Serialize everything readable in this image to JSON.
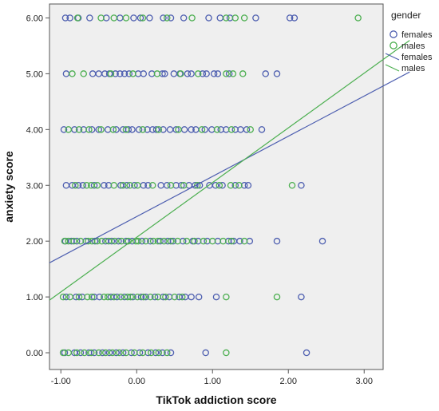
{
  "chart_data": {
    "type": "scatter",
    "xlabel": "TikTok addiction score",
    "ylabel": "anxiety score",
    "xlim": [
      -1.15,
      3.25
    ],
    "ylim": [
      -0.3,
      6.25
    ],
    "xticks": [
      -1.0,
      0.0,
      1.0,
      2.0,
      3.0
    ],
    "xtick_labels": [
      "-1.00",
      "0.00",
      "1.00",
      "2.00",
      "3.00"
    ],
    "yticks": [
      0,
      1,
      2,
      3,
      4,
      5,
      6
    ],
    "ytick_labels": [
      "0.00",
      "1.00",
      "2.00",
      "3.00",
      "4.00",
      "5.00",
      "6.00"
    ],
    "grid": false,
    "background": "#efefef",
    "legend_title": "gender",
    "legend_position": "right",
    "series": [
      {
        "name": "females",
        "color": "#4e5fb0",
        "points": [
          [
            -0.94,
            6
          ],
          [
            -0.88,
            6
          ],
          [
            -0.77,
            6
          ],
          [
            -0.62,
            6
          ],
          [
            -0.4,
            6
          ],
          [
            -0.22,
            6
          ],
          [
            -0.04,
            6
          ],
          [
            0.05,
            6
          ],
          [
            0.17,
            6
          ],
          [
            0.35,
            6
          ],
          [
            0.45,
            6
          ],
          [
            0.62,
            6
          ],
          [
            0.95,
            6
          ],
          [
            1.1,
            6
          ],
          [
            1.23,
            6
          ],
          [
            1.57,
            6
          ],
          [
            2.02,
            6
          ],
          [
            2.08,
            6
          ],
          [
            -0.93,
            5
          ],
          [
            -0.58,
            5
          ],
          [
            -0.5,
            5
          ],
          [
            -0.42,
            5
          ],
          [
            -0.36,
            5
          ],
          [
            -0.28,
            5
          ],
          [
            -0.22,
            5
          ],
          [
            -0.16,
            5
          ],
          [
            -0.1,
            5
          ],
          [
            0.02,
            5
          ],
          [
            0.09,
            5
          ],
          [
            0.2,
            5
          ],
          [
            0.34,
            5
          ],
          [
            0.37,
            5
          ],
          [
            0.49,
            5
          ],
          [
            0.57,
            5
          ],
          [
            0.67,
            5
          ],
          [
            0.72,
            5
          ],
          [
            0.87,
            5
          ],
          [
            0.92,
            5
          ],
          [
            1.02,
            5
          ],
          [
            1.07,
            5
          ],
          [
            1.22,
            5
          ],
          [
            1.7,
            5
          ],
          [
            1.85,
            5
          ],
          [
            -0.96,
            4
          ],
          [
            -0.82,
            4
          ],
          [
            -0.7,
            4
          ],
          [
            -0.59,
            4
          ],
          [
            -0.5,
            4
          ],
          [
            -0.38,
            4
          ],
          [
            -0.27,
            4
          ],
          [
            -0.18,
            4
          ],
          [
            -0.11,
            4
          ],
          [
            -0.06,
            4
          ],
          [
            0.03,
            4
          ],
          [
            0.14,
            4
          ],
          [
            0.21,
            4
          ],
          [
            0.26,
            4
          ],
          [
            0.35,
            4
          ],
          [
            0.44,
            4
          ],
          [
            0.52,
            4
          ],
          [
            0.63,
            4
          ],
          [
            0.72,
            4
          ],
          [
            0.78,
            4
          ],
          [
            0.9,
            4
          ],
          [
            0.99,
            4
          ],
          [
            1.11,
            4
          ],
          [
            1.18,
            4
          ],
          [
            1.3,
            4
          ],
          [
            1.37,
            4
          ],
          [
            1.45,
            4
          ],
          [
            1.65,
            4
          ],
          [
            -0.93,
            3
          ],
          [
            -0.85,
            3
          ],
          [
            -0.77,
            3
          ],
          [
            -0.71,
            3
          ],
          [
            -0.56,
            3
          ],
          [
            -0.43,
            3
          ],
          [
            -0.37,
            3
          ],
          [
            -0.21,
            3
          ],
          [
            -0.13,
            3
          ],
          [
            -0.03,
            3
          ],
          [
            0.09,
            3
          ],
          [
            0.15,
            3
          ],
          [
            0.32,
            3
          ],
          [
            0.4,
            3
          ],
          [
            0.52,
            3
          ],
          [
            0.59,
            3
          ],
          [
            0.69,
            3
          ],
          [
            0.77,
            3
          ],
          [
            0.83,
            3
          ],
          [
            0.96,
            3
          ],
          [
            1.04,
            3
          ],
          [
            1.13,
            3
          ],
          [
            1.3,
            3
          ],
          [
            1.42,
            3
          ],
          [
            1.47,
            3
          ],
          [
            2.17,
            3
          ],
          [
            -0.94,
            2
          ],
          [
            -0.86,
            2
          ],
          [
            -0.79,
            2
          ],
          [
            -0.67,
            2
          ],
          [
            -0.55,
            2
          ],
          [
            -0.41,
            2
          ],
          [
            -0.33,
            2
          ],
          [
            -0.24,
            2
          ],
          [
            -0.14,
            2
          ],
          [
            -0.06,
            2
          ],
          [
            0.07,
            2
          ],
          [
            0.18,
            2
          ],
          [
            0.31,
            2
          ],
          [
            0.41,
            2
          ],
          [
            0.48,
            2
          ],
          [
            0.61,
            2
          ],
          [
            0.74,
            2
          ],
          [
            0.81,
            2
          ],
          [
            0.93,
            2
          ],
          [
            1.07,
            2
          ],
          [
            1.21,
            2
          ],
          [
            1.28,
            2
          ],
          [
            1.36,
            2
          ],
          [
            1.49,
            2
          ],
          [
            1.85,
            2
          ],
          [
            2.45,
            2
          ],
          [
            -0.93,
            1
          ],
          [
            -0.8,
            1
          ],
          [
            -0.72,
            1
          ],
          [
            -0.56,
            1
          ],
          [
            -0.49,
            1
          ],
          [
            -0.34,
            1
          ],
          [
            -0.26,
            1
          ],
          [
            -0.16,
            1
          ],
          [
            -0.05,
            1
          ],
          [
            0.06,
            1
          ],
          [
            0.12,
            1
          ],
          [
            0.24,
            1
          ],
          [
            0.35,
            1
          ],
          [
            0.43,
            1
          ],
          [
            0.56,
            1
          ],
          [
            0.64,
            1
          ],
          [
            0.72,
            1
          ],
          [
            0.82,
            1
          ],
          [
            1.05,
            1
          ],
          [
            2.17,
            1
          ],
          [
            -0.95,
            0
          ],
          [
            -0.82,
            0
          ],
          [
            -0.74,
            0
          ],
          [
            -0.63,
            0
          ],
          [
            -0.56,
            0
          ],
          [
            -0.45,
            0
          ],
          [
            -0.36,
            0
          ],
          [
            -0.27,
            0
          ],
          [
            -0.18,
            0
          ],
          [
            -0.07,
            0
          ],
          [
            0.04,
            0
          ],
          [
            0.15,
            0
          ],
          [
            0.25,
            0
          ],
          [
            0.34,
            0
          ],
          [
            0.45,
            0
          ],
          [
            0.91,
            0
          ],
          [
            2.24,
            0
          ]
        ],
        "fit": {
          "intercept": 2.44,
          "slope": 0.72
        }
      },
      {
        "name": "males",
        "color": "#4caf50",
        "points": [
          [
            -0.78,
            6
          ],
          [
            -0.47,
            6
          ],
          [
            -0.3,
            6
          ],
          [
            -0.14,
            6
          ],
          [
            0.08,
            6
          ],
          [
            0.4,
            6
          ],
          [
            0.73,
            6
          ],
          [
            1.18,
            6
          ],
          [
            1.3,
            6
          ],
          [
            1.42,
            6
          ],
          [
            2.92,
            6
          ],
          [
            -0.85,
            5
          ],
          [
            -0.7,
            5
          ],
          [
            -0.34,
            5
          ],
          [
            -0.05,
            5
          ],
          [
            0.27,
            5
          ],
          [
            0.58,
            5
          ],
          [
            0.81,
            5
          ],
          [
            1.18,
            5
          ],
          [
            1.27,
            5
          ],
          [
            1.4,
            5
          ],
          [
            -0.9,
            4
          ],
          [
            -0.76,
            4
          ],
          [
            -0.63,
            4
          ],
          [
            -0.47,
            4
          ],
          [
            -0.31,
            4
          ],
          [
            -0.14,
            4
          ],
          [
            0.08,
            4
          ],
          [
            0.29,
            4
          ],
          [
            0.55,
            4
          ],
          [
            0.86,
            4
          ],
          [
            1.06,
            4
          ],
          [
            1.25,
            4
          ],
          [
            1.5,
            4
          ],
          [
            -0.81,
            3
          ],
          [
            -0.66,
            3
          ],
          [
            -0.6,
            3
          ],
          [
            -0.52,
            3
          ],
          [
            -0.3,
            3
          ],
          [
            -0.18,
            3
          ],
          [
            -0.09,
            3
          ],
          [
            0.01,
            3
          ],
          [
            0.21,
            3
          ],
          [
            0.45,
            3
          ],
          [
            0.62,
            3
          ],
          [
            0.8,
            3
          ],
          [
            1.09,
            3
          ],
          [
            1.24,
            3
          ],
          [
            1.35,
            3
          ],
          [
            2.05,
            3
          ],
          [
            -0.95,
            2
          ],
          [
            -0.9,
            2
          ],
          [
            -0.83,
            2
          ],
          [
            -0.74,
            2
          ],
          [
            -0.64,
            2
          ],
          [
            -0.59,
            2
          ],
          [
            -0.52,
            2
          ],
          [
            -0.46,
            2
          ],
          [
            -0.37,
            2
          ],
          [
            -0.29,
            2
          ],
          [
            -0.2,
            2
          ],
          [
            -0.11,
            2
          ],
          [
            -0.01,
            2
          ],
          [
            0.02,
            2
          ],
          [
            0.12,
            2
          ],
          [
            0.22,
            2
          ],
          [
            0.28,
            2
          ],
          [
            0.36,
            2
          ],
          [
            0.45,
            2
          ],
          [
            0.54,
            2
          ],
          [
            0.66,
            2
          ],
          [
            0.76,
            2
          ],
          [
            0.88,
            2
          ],
          [
            1.0,
            2
          ],
          [
            1.14,
            2
          ],
          [
            1.25,
            2
          ],
          [
            1.42,
            2
          ],
          [
            -0.97,
            1
          ],
          [
            -0.88,
            1
          ],
          [
            -0.76,
            1
          ],
          [
            -0.65,
            1
          ],
          [
            -0.59,
            1
          ],
          [
            -0.43,
            1
          ],
          [
            -0.38,
            1
          ],
          [
            -0.3,
            1
          ],
          [
            -0.21,
            1
          ],
          [
            -0.12,
            1
          ],
          [
            -0.08,
            1
          ],
          [
            0.01,
            1
          ],
          [
            0.09,
            1
          ],
          [
            0.18,
            1
          ],
          [
            0.28,
            1
          ],
          [
            0.38,
            1
          ],
          [
            0.5,
            1
          ],
          [
            0.6,
            1
          ],
          [
            1.18,
            1
          ],
          [
            1.85,
            1
          ],
          [
            -0.97,
            0
          ],
          [
            -0.9,
            0
          ],
          [
            -0.79,
            0
          ],
          [
            -0.69,
            0
          ],
          [
            -0.6,
            0
          ],
          [
            -0.5,
            0
          ],
          [
            -0.41,
            0
          ],
          [
            -0.32,
            0
          ],
          [
            -0.23,
            0
          ],
          [
            -0.14,
            0
          ],
          [
            -0.03,
            0
          ],
          [
            0.08,
            0
          ],
          [
            0.19,
            0
          ],
          [
            0.29,
            0
          ],
          [
            0.4,
            0
          ],
          [
            1.18,
            0
          ]
        ],
        "fit": {
          "intercept": 2.07,
          "slope": 0.98
        }
      }
    ],
    "legend": [
      {
        "label": "females",
        "kind": "marker",
        "color": "#4e5fb0"
      },
      {
        "label": "males",
        "kind": "marker",
        "color": "#4caf50"
      },
      {
        "label": "females",
        "kind": "line",
        "color": "#4e5fb0"
      },
      {
        "label": "males",
        "kind": "line",
        "color": "#4caf50"
      }
    ]
  }
}
